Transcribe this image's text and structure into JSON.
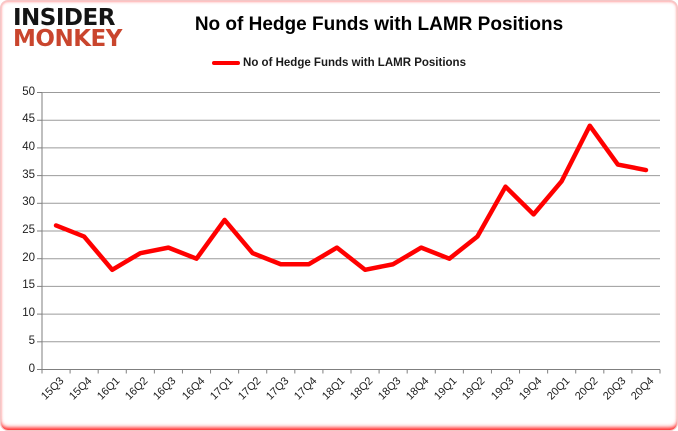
{
  "logo": {
    "line1": "INSIDER",
    "line2": "MONKEY",
    "line2_color": "#c9452d"
  },
  "title": "No of Hedge Funds with LAMR Positions",
  "legend": {
    "label": "No of Hedge Funds with LAMR Positions",
    "line_color": "#ff0000"
  },
  "chart_data": {
    "type": "line",
    "title": "No of Hedge Funds with LAMR Positions",
    "series_name": "No of Hedge Funds with LAMR Positions",
    "categories": [
      "15Q3",
      "15Q4",
      "16Q1",
      "16Q2",
      "16Q3",
      "16Q4",
      "17Q1",
      "17Q2",
      "17Q3",
      "17Q4",
      "18Q1",
      "18Q2",
      "18Q3",
      "18Q4",
      "19Q1",
      "19Q2",
      "19Q3",
      "19Q4",
      "20Q1",
      "20Q2",
      "20Q3",
      "20Q4"
    ],
    "values": [
      26,
      24,
      18,
      21,
      22,
      20,
      27,
      21,
      19,
      19,
      22,
      18,
      19,
      22,
      20,
      24,
      33,
      28,
      34,
      44,
      37,
      36
    ],
    "xlabel": "",
    "ylabel": "",
    "ylim": [
      0,
      50
    ],
    "ytick_step": 5,
    "grid": true,
    "legend_position": "top",
    "line_color": "#ff0000",
    "gridline_color": "#9b9b9b",
    "axis_color": "#7f7f7f",
    "tick_label_color": "#1f1f1f"
  }
}
